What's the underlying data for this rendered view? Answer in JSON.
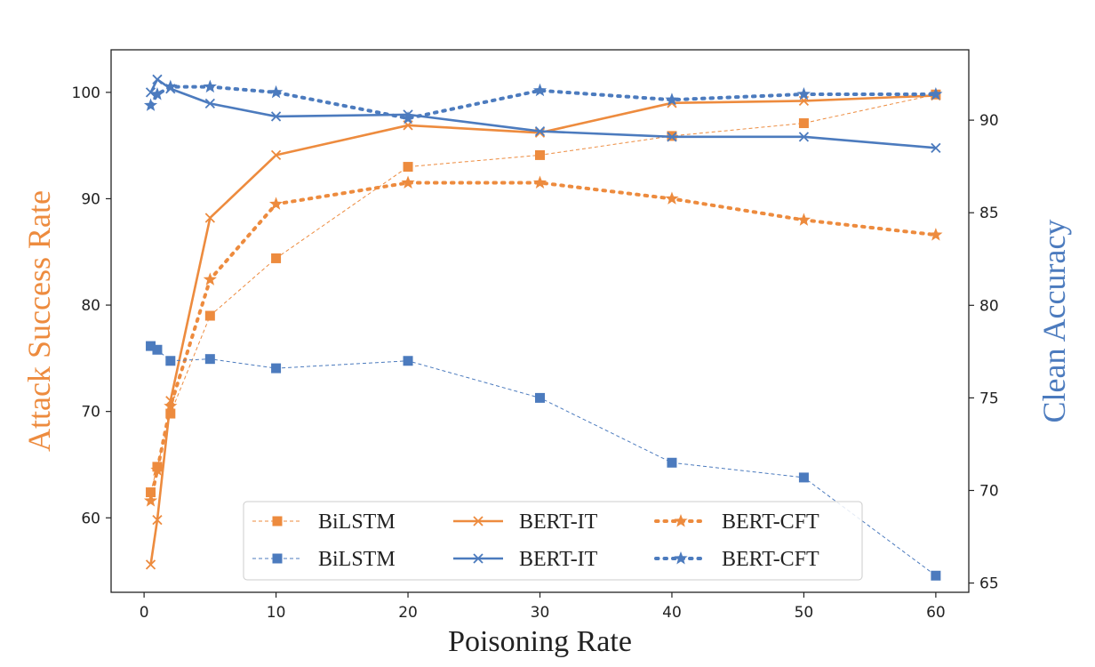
{
  "chart_data": {
    "type": "line",
    "xlabel": "Poisoning Rate",
    "ylabel_left": "Attack Success Rate",
    "ylabel_right": "Clean Accuracy",
    "xlim": [
      -2.5,
      62.5
    ],
    "ylim_left": [
      53,
      104
    ],
    "ylim_right": [
      64.5,
      93.8
    ],
    "xticks": [
      0,
      10,
      20,
      30,
      40,
      50,
      60
    ],
    "yticks_left": [
      60,
      70,
      80,
      90,
      100
    ],
    "yticks_right": [
      65,
      70,
      75,
      80,
      85,
      90
    ],
    "grid": false,
    "legend_position": "bottom-right",
    "colors": {
      "orange": "#ED8B3E",
      "blue": "#4C7BBE"
    },
    "series": [
      {
        "name": "BiLSTM",
        "axis": "left",
        "color": "#ED8B3E",
        "style": "thin-dashed",
        "marker": "square",
        "x": [
          0.5,
          1,
          2,
          5,
          10,
          20,
          30,
          40,
          50,
          60
        ],
        "y": [
          62.4,
          64.8,
          69.8,
          79.0,
          84.4,
          93.0,
          94.1,
          95.9,
          97.1,
          99.8
        ]
      },
      {
        "name": "BERT-IT",
        "axis": "left",
        "color": "#ED8B3E",
        "style": "solid",
        "marker": "x",
        "x": [
          0.5,
          1,
          2,
          5,
          10,
          20,
          30,
          40,
          50,
          60
        ],
        "y": [
          55.6,
          59.8,
          71.0,
          88.2,
          94.1,
          96.9,
          96.2,
          99.0,
          99.2,
          99.7
        ]
      },
      {
        "name": "BERT-CFT",
        "axis": "left",
        "color": "#ED8B3E",
        "style": "dotted",
        "marker": "star",
        "x": [
          0.5,
          1,
          2,
          5,
          10,
          20,
          30,
          40,
          50,
          60
        ],
        "y": [
          61.6,
          64.5,
          70.5,
          82.4,
          89.5,
          91.5,
          91.5,
          90.0,
          88.0,
          86.6
        ]
      },
      {
        "name": "BiLSTM",
        "axis": "right",
        "color": "#4C7BBE",
        "style": "thin-dashed",
        "marker": "square",
        "x": [
          0.5,
          1,
          2,
          5,
          10,
          20,
          30,
          40,
          50,
          60
        ],
        "y": [
          77.8,
          77.6,
          77.0,
          77.1,
          76.6,
          77.0,
          75.0,
          71.5,
          70.7,
          65.4
        ]
      },
      {
        "name": "BERT-IT",
        "axis": "right",
        "color": "#4C7BBE",
        "style": "solid",
        "marker": "x",
        "x": [
          0.5,
          1,
          2,
          5,
          10,
          20,
          30,
          40,
          50,
          60
        ],
        "y": [
          91.5,
          92.2,
          91.7,
          90.9,
          90.2,
          90.3,
          89.4,
          89.1,
          89.1,
          88.5
        ]
      },
      {
        "name": "BERT-CFT",
        "axis": "right",
        "color": "#4C7BBE",
        "style": "dotted",
        "marker": "star",
        "x": [
          0.5,
          1,
          2,
          5,
          10,
          20,
          30,
          40,
          50,
          60
        ],
        "y": [
          90.8,
          91.4,
          91.8,
          91.8,
          91.5,
          90.1,
          91.6,
          91.1,
          91.4,
          91.4
        ]
      }
    ]
  }
}
